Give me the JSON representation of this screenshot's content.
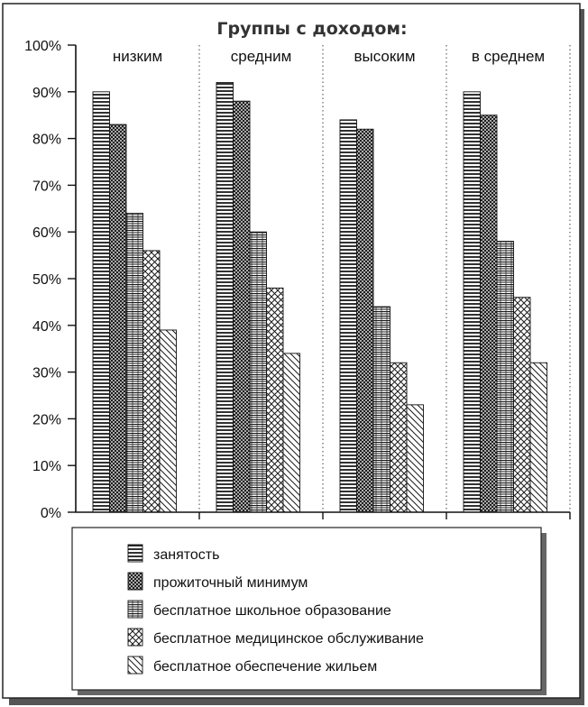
{
  "chart_data": {
    "type": "bar",
    "title": "Группы с доходом:",
    "categories": [
      "низким",
      "средним",
      "высоким",
      "в среднем"
    ],
    "ylim": [
      0,
      100
    ],
    "yticks": [
      "0%",
      "10%",
      "20%",
      "30%",
      "40%",
      "50%",
      "60%",
      "70%",
      "80%",
      "90%",
      "100%"
    ],
    "series": [
      {
        "name": "занятость",
        "values": [
          90,
          92,
          84,
          90
        ],
        "pattern": "horizontal-lines"
      },
      {
        "name": "прожиточный минимум",
        "values": [
          83,
          88,
          82,
          85
        ],
        "pattern": "dense-crosshatch"
      },
      {
        "name": "бесплатное школьное образование",
        "values": [
          64,
          60,
          44,
          58
        ],
        "pattern": "brick"
      },
      {
        "name": "бесплатное медицинское обслуживание",
        "values": [
          56,
          48,
          32,
          46
        ],
        "pattern": "diagonal-crosshatch"
      },
      {
        "name": "бесплатное обеспечение жильем",
        "values": [
          39,
          34,
          23,
          32
        ],
        "pattern": "diagonal-lines"
      }
    ],
    "grid": false,
    "category_separators": "dotted-vertical",
    "legend_position": "bottom"
  }
}
